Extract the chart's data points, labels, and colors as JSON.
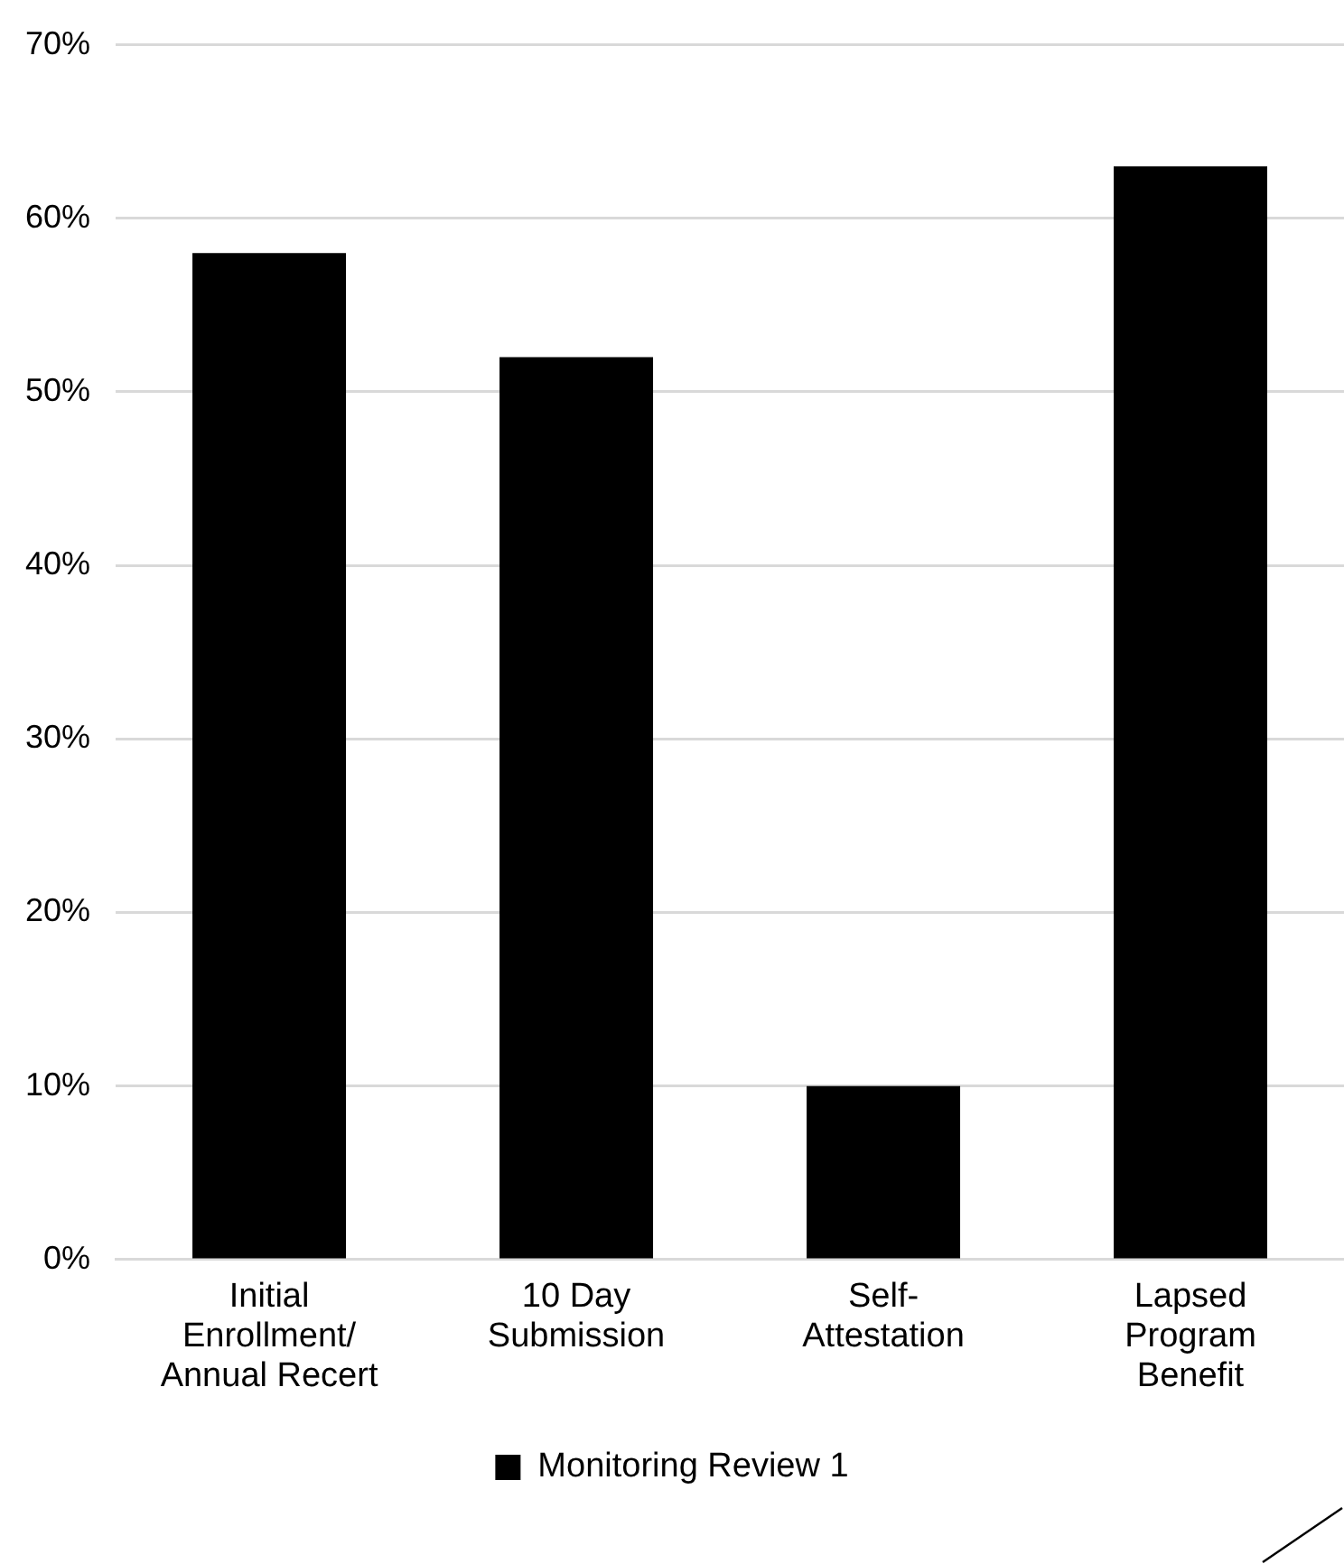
{
  "chart_data": {
    "type": "bar",
    "categories": [
      "Initial Enrollment/ Annual Recert",
      "10 Day Submission",
      "Self-Attestation",
      "Lapsed Program Benefit"
    ],
    "series": [
      {
        "name": "Monitoring Review 1",
        "color": "#000000",
        "values": [
          58,
          52,
          10,
          63
        ]
      }
    ],
    "ylim": [
      0,
      70
    ],
    "yticks": [
      {
        "value": 0,
        "label": "0%"
      },
      {
        "value": 10,
        "label": "10%"
      },
      {
        "value": 20,
        "label": "20%"
      },
      {
        "value": 30,
        "label": "30%"
      },
      {
        "value": 40,
        "label": "40%"
      },
      {
        "value": 50,
        "label": "50%"
      },
      {
        "value": 60,
        "label": "60%"
      },
      {
        "value": 70,
        "label": "70%"
      }
    ],
    "grid": "y",
    "legend": "bottom"
  }
}
